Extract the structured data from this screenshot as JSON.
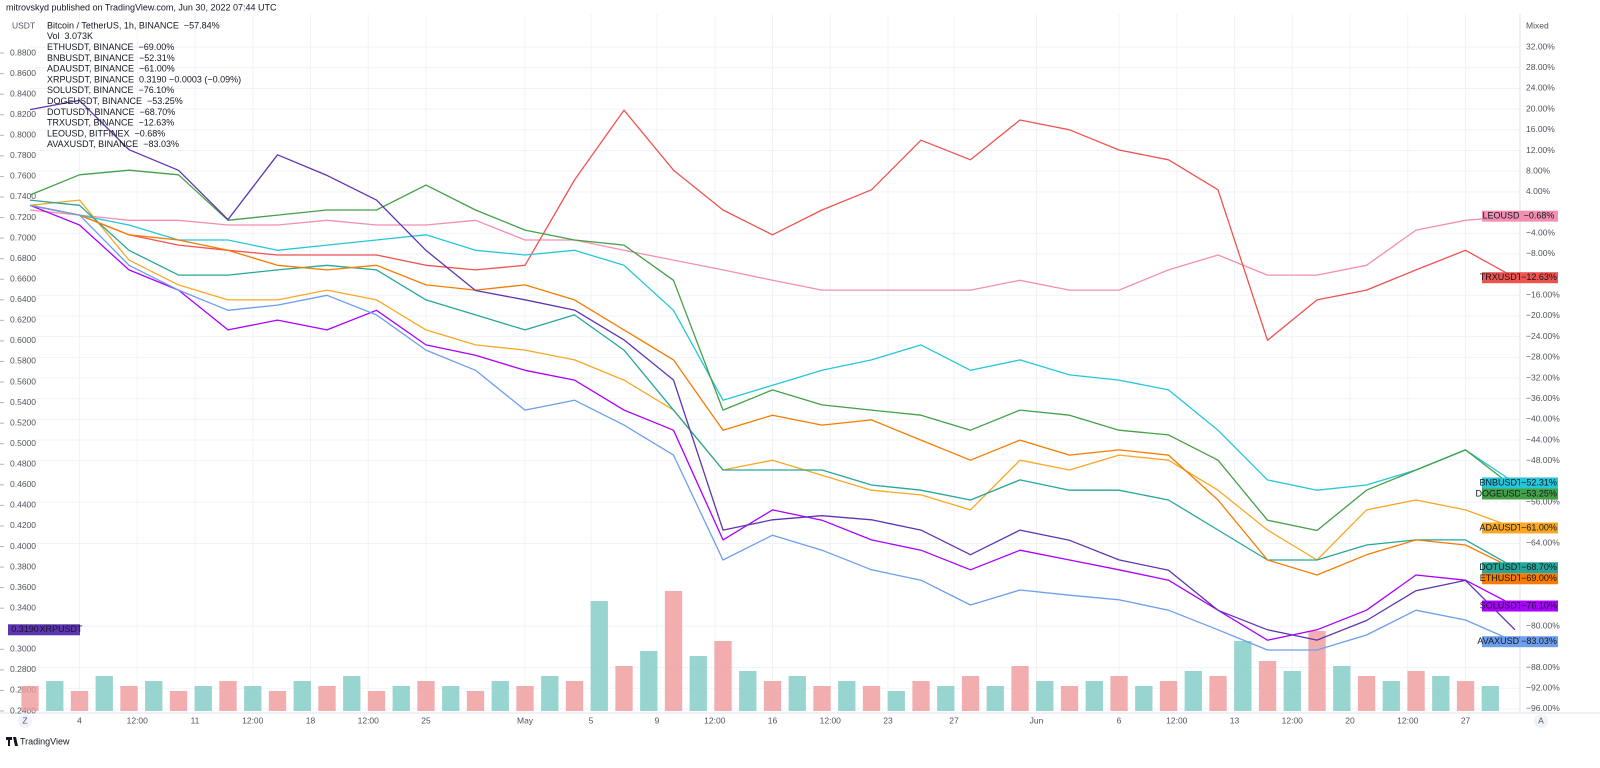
{
  "header": {
    "publisher": "mitrovskyd published on TradingView.com, Jun 30, 2022 07:44 UTC",
    "brand": "TradingView",
    "zoom_button": "Z",
    "auto_button": "A"
  },
  "chart_data": {
    "type": "line",
    "y_axis_label": "USDT",
    "y2_axis_label": "Mixed",
    "xlim": [
      0,
      90.3
    ],
    "xticks": [
      {
        "value": 3,
        "label": "4"
      },
      {
        "value": 6.5,
        "label": "12:00"
      },
      {
        "value": 10,
        "label": "11"
      },
      {
        "value": 13.5,
        "label": "12:00"
      },
      {
        "value": 17,
        "label": "18"
      },
      {
        "value": 20.5,
        "label": "12:00"
      },
      {
        "value": 24,
        "label": "25"
      },
      {
        "value": 30,
        "label": "May"
      },
      {
        "value": 34,
        "label": "5"
      },
      {
        "value": 38,
        "label": "9"
      },
      {
        "value": 41.5,
        "label": "12:00"
      },
      {
        "value": 45,
        "label": "16"
      },
      {
        "value": 48.5,
        "label": "12:00"
      },
      {
        "value": 52,
        "label": "23"
      },
      {
        "value": 56,
        "label": "27"
      },
      {
        "value": 61,
        "label": "Jun"
      },
      {
        "value": 66,
        "label": "6"
      },
      {
        "value": 69.5,
        "label": "12:00"
      },
      {
        "value": 73,
        "label": "13"
      },
      {
        "value": 76.5,
        "label": "12:00"
      },
      {
        "value": 80,
        "label": "20"
      },
      {
        "value": 83.5,
        "label": "12:00"
      },
      {
        "value": 87,
        "label": "27"
      }
    ],
    "ylim": [
      0.24,
      0.918
    ],
    "yticks": [
      {
        "value": 0.24,
        "label": "0.2400"
      },
      {
        "value": 0.26,
        "label": "0.2600"
      },
      {
        "value": 0.28,
        "label": "0.2800"
      },
      {
        "value": 0.3,
        "label": "0.3000"
      },
      {
        "value": 0.34,
        "label": "0.3400"
      },
      {
        "value": 0.36,
        "label": "0.3600"
      },
      {
        "value": 0.38,
        "label": "0.3800"
      },
      {
        "value": 0.4,
        "label": "0.4000"
      },
      {
        "value": 0.42,
        "label": "0.4200"
      },
      {
        "value": 0.44,
        "label": "0.4400"
      },
      {
        "value": 0.46,
        "label": "0.4600"
      },
      {
        "value": 0.48,
        "label": "0.4800"
      },
      {
        "value": 0.5,
        "label": "0.5000"
      },
      {
        "value": 0.52,
        "label": "0.5200"
      },
      {
        "value": 0.54,
        "label": "0.5400"
      },
      {
        "value": 0.56,
        "label": "0.5600"
      },
      {
        "value": 0.58,
        "label": "0.5800"
      },
      {
        "value": 0.6,
        "label": "0.6000"
      },
      {
        "value": 0.62,
        "label": "0.6200"
      },
      {
        "value": 0.64,
        "label": "0.6400"
      },
      {
        "value": 0.66,
        "label": "0.6600"
      },
      {
        "value": 0.68,
        "label": "0.6800"
      },
      {
        "value": 0.7,
        "label": "0.7000"
      },
      {
        "value": 0.72,
        "label": "0.7200"
      },
      {
        "value": 0.74,
        "label": "0.7400"
      },
      {
        "value": 0.76,
        "label": "0.7600"
      },
      {
        "value": 0.78,
        "label": "0.7800"
      },
      {
        "value": 0.8,
        "label": "0.8000"
      },
      {
        "value": 0.82,
        "label": "0.8200"
      },
      {
        "value": 0.84,
        "label": "0.8400"
      },
      {
        "value": 0.86,
        "label": "0.8600"
      },
      {
        "value": 0.88,
        "label": "0.8800"
      }
    ],
    "y2lim": [
      -96.4,
      38.4
    ],
    "y2ticks": [
      {
        "value": -96,
        "label": "−96.00%"
      },
      {
        "value": -92,
        "label": "−92.00%"
      },
      {
        "value": -88,
        "label": "−88.00%"
      },
      {
        "value": -80,
        "label": "−80.00%"
      },
      {
        "value": -64,
        "label": "−64.00%"
      },
      {
        "value": -56,
        "label": "−56.00%"
      },
      {
        "value": -48,
        "label": "−48.00%"
      },
      {
        "value": -44,
        "label": "−44.00%"
      },
      {
        "value": -40,
        "label": "−40.00%"
      },
      {
        "value": -36,
        "label": "−36.00%"
      },
      {
        "value": -32,
        "label": "−32.00%"
      },
      {
        "value": -28,
        "label": "−28.00%"
      },
      {
        "value": -24,
        "label": "−24.00%"
      },
      {
        "value": -20,
        "label": "−20.00%"
      },
      {
        "value": -16,
        "label": "−16.00%"
      },
      {
        "value": -8,
        "label": "−8.00%"
      },
      {
        "value": -4,
        "label": "−4.00%"
      },
      {
        "value": 4,
        "label": "4.00%"
      },
      {
        "value": 8,
        "label": "8.00%"
      },
      {
        "value": 12,
        "label": "12.00%"
      },
      {
        "value": 16,
        "label": "16.00%"
      },
      {
        "value": 20,
        "label": "20.00%"
      },
      {
        "value": 24,
        "label": "24.00%"
      },
      {
        "value": 28,
        "label": "28.00%"
      },
      {
        "value": 32,
        "label": "32.00%"
      }
    ],
    "grid": true,
    "legend": [
      {
        "label": "Bitcoin / TetherUS, 1h, BINANCE",
        "value": "−57.84%",
        "color": "#2962ff"
      },
      {
        "label": "Vol",
        "value": "3.073K",
        "color": "#ef5350"
      },
      {
        "label": "ETHUSDT, BINANCE",
        "value": "−69.00%",
        "color": "#f57c00"
      },
      {
        "label": "BNBUSDT, BINANCE",
        "value": "−52.31%",
        "color": "#26c6da"
      },
      {
        "label": "ADAUSDT, BINANCE",
        "value": "−61.00%",
        "color": "#f9a825"
      },
      {
        "label": "XRPUSDT, BINANCE",
        "value": "0.3190  −0.0003 (−0.09%)",
        "color": "#7e57c2"
      },
      {
        "label": "SOLUSDT, BINANCE",
        "value": "−76.10%",
        "color": "#aa00ff"
      },
      {
        "label": "DOGEUSDT, BINANCE",
        "value": "−53.25%",
        "color": "#43a047"
      },
      {
        "label": "DOTUSDT, BINANCE",
        "value": "−68.70%",
        "color": "#26a69a"
      },
      {
        "label": "TRXUSDT, BINANCE",
        "value": "−12.63%",
        "color": "#ef5350"
      },
      {
        "label": "LEOUSD, BITFINEX",
        "value": "−0.68%",
        "color": "#f48fb1"
      },
      {
        "label": "AVAXUSDT, BINANCE",
        "value": "−83.03%",
        "color": "#6d9eeb"
      }
    ],
    "x": [
      0,
      3,
      6,
      9,
      12,
      15,
      18,
      21,
      24,
      27,
      30,
      33,
      36,
      39,
      42,
      45,
      48,
      51,
      54,
      57,
      60,
      63,
      66,
      69,
      72,
      75,
      78,
      81,
      84,
      87,
      90
    ],
    "series": [
      {
        "name": "LEOUSD",
        "tag": "−0.68%",
        "color": "#f48fb1",
        "axis": "y2",
        "values": [
          0.5,
          -0.5,
          -1.5,
          -1.5,
          -2.4,
          -2.4,
          -1.5,
          -2.4,
          -2.4,
          -1.5,
          -5.3,
          -5.3,
          -7.3,
          -9.2,
          -11.1,
          -13.1,
          -15.0,
          -15.0,
          -15.0,
          -15.0,
          -13.1,
          -15.0,
          -15.0,
          -11.1,
          -8.2,
          -12.1,
          -12.1,
          -10.2,
          -3.4,
          -1.5,
          -0.7
        ]
      },
      {
        "name": "TRXUSDT",
        "tag": "−12.63%",
        "color": "#ef5350",
        "axis": "y2",
        "values": [
          1.4,
          -0.5,
          -4.3,
          -6.3,
          -7.3,
          -8.2,
          -8.2,
          -8.2,
          -10.2,
          -11.1,
          -10.2,
          6.3,
          19.8,
          8.2,
          0.5,
          -4.3,
          0.5,
          4.4,
          14.0,
          10.2,
          17.9,
          16.0,
          12.1,
          10.2,
          4.4,
          -24.7,
          -16.9,
          -15.0,
          -11.1,
          -7.3,
          -12.6
        ]
      },
      {
        "name": "BNBUSDT",
        "tag": "−52.31%",
        "color": "#26c6da",
        "axis": "y2",
        "values": [
          1.4,
          -0.5,
          -2.4,
          -5.3,
          -5.3,
          -7.3,
          -6.3,
          -5.3,
          -4.3,
          -7.3,
          -8.2,
          -7.3,
          -10.2,
          -18.9,
          -36.3,
          -33.4,
          -30.5,
          -28.5,
          -25.6,
          -30.5,
          -28.5,
          -31.4,
          -32.4,
          -34.3,
          -42.1,
          -51.7,
          -53.7,
          -52.7,
          -49.8,
          -45.9,
          -52.3
        ]
      },
      {
        "name": "DOGEUSDT",
        "tag": "−53.25%",
        "color": "#43a047",
        "axis": "y2",
        "values": [
          3.4,
          7.3,
          8.2,
          7.3,
          -1.5,
          -0.5,
          0.5,
          0.5,
          5.3,
          0.5,
          -3.4,
          -5.3,
          -6.3,
          -13.1,
          -38.2,
          -34.3,
          -37.2,
          -38.2,
          -39.2,
          -42.1,
          -38.2,
          -39.2,
          -42.1,
          -43.0,
          -47.9,
          -59.5,
          -61.5,
          -53.7,
          -49.8,
          -45.9,
          -53.3
        ]
      },
      {
        "name": "ADAUSDT",
        "tag": "−61.00%",
        "color": "#f9a825",
        "axis": "y2",
        "values": [
          1.4,
          2.4,
          -9.2,
          -14.0,
          -16.9,
          -16.9,
          -15.0,
          -16.9,
          -22.7,
          -25.6,
          -26.6,
          -28.5,
          -32.4,
          -38.2,
          -49.8,
          -47.9,
          -50.8,
          -53.7,
          -54.6,
          -57.5,
          -47.9,
          -49.8,
          -46.9,
          -47.9,
          -53.7,
          -61.4,
          -67.2,
          -57.5,
          -55.6,
          -57.5,
          -61.0
        ]
      },
      {
        "name": "DOTUSDT",
        "tag": "−68.70%",
        "color": "#26a69a",
        "axis": "y2",
        "values": [
          2.4,
          1.4,
          -7.3,
          -12.1,
          -12.1,
          -11.1,
          -10.2,
          -11.1,
          -16.9,
          -19.8,
          -22.7,
          -19.8,
          -26.6,
          -38.2,
          -49.8,
          -49.8,
          -49.8,
          -52.7,
          -53.7,
          -55.6,
          -51.7,
          -53.7,
          -53.7,
          -55.6,
          -61.4,
          -67.2,
          -67.2,
          -64.3,
          -63.3,
          -63.3,
          -68.7
        ]
      },
      {
        "name": "ETHUSDT",
        "tag": "−69.00%",
        "color": "#f57c00",
        "axis": "y2",
        "values": [
          1.4,
          -0.5,
          -4.3,
          -5.3,
          -7.3,
          -10.2,
          -11.1,
          -10.2,
          -14.0,
          -15.0,
          -14.0,
          -16.9,
          -22.7,
          -28.5,
          -42.1,
          -39.2,
          -41.1,
          -40.1,
          -44.0,
          -47.9,
          -44.0,
          -46.9,
          -45.9,
          -46.9,
          -55.6,
          -67.2,
          -70.1,
          -66.2,
          -63.3,
          -64.3,
          -69.0
        ]
      },
      {
        "name": "SOLUSDT",
        "tag": "−76.10%",
        "color": "#aa00ff",
        "axis": "y2",
        "values": [
          1.4,
          -2.4,
          -11.1,
          -15.0,
          -22.7,
          -20.8,
          -22.7,
          -18.9,
          -25.6,
          -27.6,
          -30.5,
          -32.4,
          -38.2,
          -42.1,
          -63.3,
          -57.5,
          -59.5,
          -63.3,
          -65.3,
          -69.1,
          -65.3,
          -67.2,
          -69.1,
          -71.1,
          -76.9,
          -82.7,
          -80.7,
          -76.9,
          -70.1,
          -71.1,
          -76.1
        ]
      },
      {
        "name": "AVAXUSDT",
        "tag": "−83.03%",
        "color": "#6d9eeb",
        "axis": "y2",
        "values": [
          1.4,
          -0.5,
          -10.2,
          -15.0,
          -18.9,
          -17.9,
          -16.0,
          -19.8,
          -26.6,
          -30.5,
          -38.2,
          -36.3,
          -41.1,
          -46.9,
          -67.2,
          -62.4,
          -65.3,
          -69.1,
          -71.1,
          -75.9,
          -73.0,
          -74.0,
          -74.9,
          -76.9,
          -80.7,
          -84.6,
          -84.6,
          -81.7,
          -76.9,
          -78.8,
          -83.0
        ]
      },
      {
        "name": "XRPUSDT",
        "tag": "0.3190",
        "color": "#5e35b1",
        "axis": "y",
        "values": [
          0.825,
          0.834,
          0.786,
          0.766,
          0.718,
          0.781,
          0.761,
          0.737,
          0.688,
          0.649,
          0.64,
          0.63,
          0.601,
          0.562,
          0.416,
          0.426,
          0.43,
          0.426,
          0.416,
          0.392,
          0.416,
          0.406,
          0.387,
          0.377,
          0.338,
          0.319,
          0.309,
          0.328,
          0.357,
          0.367,
          0.319
        ]
      }
    ],
    "volume": {
      "ylim": [
        0,
        40
      ],
      "colors": [
        "#ef9a9a",
        "#80cbc4"
      ],
      "x": [
        0,
        1.5,
        3,
        4.5,
        6,
        7.5,
        9,
        10.5,
        12,
        13.5,
        15,
        16.5,
        18,
        19.5,
        21,
        22.5,
        24,
        25.5,
        27,
        28.5,
        30,
        31.5,
        33,
        34.5,
        36,
        37.5,
        39,
        40.5,
        42,
        43.5,
        45,
        46.5,
        48,
        49.5,
        51,
        52.5,
        54,
        55.5,
        57,
        58.5,
        60,
        61.5,
        63,
        64.5,
        66,
        67.5,
        69,
        70.5,
        72,
        73.5,
        75,
        76.5,
        78,
        79.5,
        81,
        82.5,
        84,
        85.5,
        87,
        88.5
      ],
      "values": [
        5,
        6,
        4,
        7,
        5,
        6,
        4,
        5,
        6,
        5,
        4,
        6,
        5,
        7,
        4,
        5,
        6,
        5,
        4,
        6,
        5,
        7,
        6,
        22,
        9,
        12,
        24,
        11,
        14,
        8,
        6,
        7,
        5,
        6,
        5,
        4,
        6,
        5,
        7,
        5,
        9,
        6,
        5,
        6,
        7,
        5,
        6,
        8,
        7,
        14,
        10,
        8,
        16,
        9,
        7,
        6,
        8,
        7,
        6,
        5
      ]
    }
  }
}
